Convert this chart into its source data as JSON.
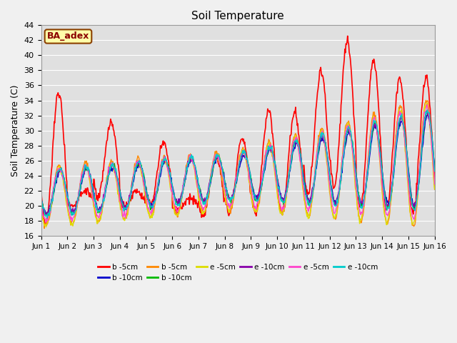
{
  "title": "Soil Temperature",
  "ylabel": "Soil Temperature (C)",
  "ylim": [
    16,
    44
  ],
  "yticks": [
    16,
    18,
    20,
    22,
    24,
    26,
    28,
    30,
    32,
    34,
    36,
    38,
    40,
    42,
    44
  ],
  "xtick_labels": [
    "Jun 1",
    "Jun 2",
    "Jun 3",
    "Jun 4",
    "Jun 5",
    "Jun 6",
    "Jun 7",
    "Jun 8",
    "Jun 9",
    "Jun 10",
    "Jun 11",
    "Jun 12",
    "Jun 13",
    "Jun 14",
    "Jun 15",
    "Jun 16"
  ],
  "n_days": 15,
  "n_per_day": 48,
  "series": [
    {
      "label": "b -5cm",
      "color": "#ff0000",
      "lw": 1.2
    },
    {
      "label": "b -10cm",
      "color": "#0000cc",
      "lw": 1.0
    },
    {
      "label": "b -5cm",
      "color": "#ff8800",
      "lw": 1.0
    },
    {
      "label": "b -10cm",
      "color": "#00bb00",
      "lw": 1.0
    },
    {
      "label": "e -5cm",
      "color": "#dddd00",
      "lw": 1.0
    },
    {
      "label": "e -10cm",
      "color": "#8800aa",
      "lw": 1.0
    },
    {
      "label": "e -5cm",
      "color": "#ff44cc",
      "lw": 1.0
    },
    {
      "label": "e -10cm",
      "color": "#00cccc",
      "lw": 1.0
    }
  ],
  "annotation_text": "BA_adex",
  "bg_color": "#f0f0f0",
  "plot_bg_color": "#e0e0e0",
  "grid_color": "#ffffff"
}
